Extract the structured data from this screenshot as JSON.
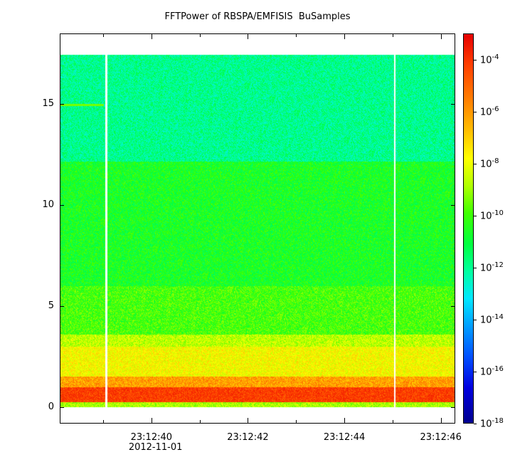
{
  "chart_data": {
    "type": "heatmap",
    "title": "FFTPower of RBSPA/EMFISIS  BuSamples",
    "xlabel": "",
    "ylabel": "",
    "x_tick_labels": [
      "23:12:40",
      "23:12:42",
      "23:12:44",
      "23:12:46"
    ],
    "x_tick_values_sec": [
      40,
      42,
      44,
      46
    ],
    "x_range_sec": [
      38.1,
      46.3
    ],
    "date_label": "2012-11-01",
    "y_ticks": [
      0,
      5,
      10,
      15
    ],
    "ylim": [
      -0.8,
      18.5
    ],
    "data_top": 17.5,
    "colorbar": {
      "scale": "log",
      "range": [
        1e-18,
        0.001
      ],
      "tick_labels": [
        {
          "base": "10",
          "exp": "-4"
        },
        {
          "base": "10",
          "exp": "-6"
        },
        {
          "base": "10",
          "exp": "-8"
        },
        {
          "base": "10",
          "exp": "-10"
        },
        {
          "base": "10",
          "exp": "-12"
        },
        {
          "base": "10",
          "exp": "-14"
        },
        {
          "base": "10",
          "exp": "-16"
        },
        {
          "base": "10",
          "exp": "-18"
        }
      ],
      "tick_exponents": [
        -4,
        -6,
        -8,
        -10,
        -12,
        -14,
        -16,
        -18
      ],
      "colors": [
        "#e60000",
        "#ff8000",
        "#ffff00",
        "#40ff00",
        "#00ffa0",
        "#00a0ff",
        "#0000e0",
        "#000090"
      ]
    },
    "bands": [
      {
        "y_from": 0.0,
        "y_to": 0.25,
        "log10_power": -9.0
      },
      {
        "y_from": 0.25,
        "y_to": 1.0,
        "log10_power": -4.8
      },
      {
        "y_from": 1.0,
        "y_to": 1.5,
        "log10_power": -6.5
      },
      {
        "y_from": 1.5,
        "y_to": 3.0,
        "log10_power": -8.0
      },
      {
        "y_from": 3.0,
        "y_to": 3.6,
        "log10_power": -8.8
      },
      {
        "y_from": 3.6,
        "y_to": 6.0,
        "log10_power": -10.0
      },
      {
        "y_from": 6.0,
        "y_to": 12.2,
        "log10_power": -10.6
      },
      {
        "y_from": 12.2,
        "y_to": 17.5,
        "log10_power": -11.8
      }
    ],
    "data_gaps_sec": [
      39.05,
      45.05
    ],
    "line_15hz_until_sec": 39.0
  }
}
